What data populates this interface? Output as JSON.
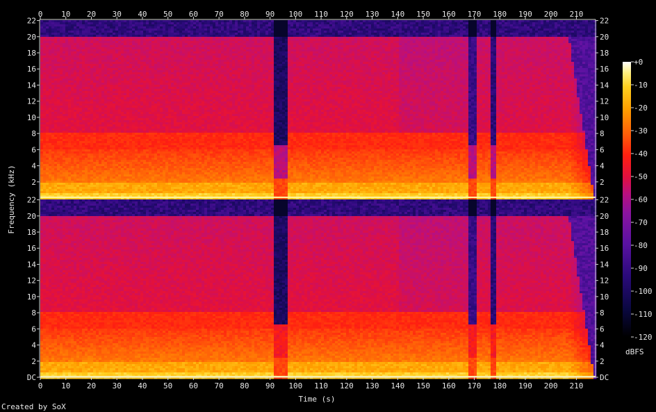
{
  "chart_data": {
    "type": "heatmap",
    "title": "",
    "xlabel": "Time (s)",
    "ylabel": "Frequency (kHz)",
    "xlim": [
      0,
      217.5
    ],
    "x_ticks": [
      0,
      10,
      20,
      30,
      40,
      50,
      60,
      70,
      80,
      90,
      100,
      110,
      120,
      130,
      140,
      150,
      160,
      170,
      180,
      190,
      200,
      210
    ],
    "x_tick_labels": [
      "0",
      "10",
      "20",
      "30",
      "40",
      "50",
      "60",
      "70",
      "80",
      "90",
      "100",
      "110",
      "120",
      "130",
      "140",
      "150",
      "160",
      "170",
      "180",
      "190",
      "200",
      "210"
    ],
    "channels": [
      {
        "ylim": [
          0,
          22.05
        ],
        "y_ticks": [
          2,
          4,
          6,
          8,
          10,
          12,
          14,
          16,
          18,
          20,
          22
        ],
        "y_tick_labels": [
          "2",
          "4",
          "6",
          "8",
          "10",
          "12",
          "14",
          "16",
          "18",
          "20",
          "22"
        ]
      },
      {
        "ylim": [
          0,
          22.05
        ],
        "y_ticks": [
          0,
          2,
          4,
          6,
          8,
          10,
          12,
          14,
          16,
          18,
          20,
          22
        ],
        "y_tick_labels": [
          "DC",
          "2",
          "4",
          "6",
          "8",
          "10",
          "12",
          "14",
          "16",
          "18",
          "20",
          "22"
        ]
      }
    ],
    "colorbar": {
      "label": "dBFS",
      "range": [
        -120,
        0
      ],
      "ticks": [
        0,
        -10,
        -20,
        -30,
        -40,
        -50,
        -60,
        -70,
        -80,
        -90,
        -100,
        -110,
        -120
      ],
      "tick_labels": [
        "+0",
        "-10",
        "-20",
        "-30",
        "-40",
        "-50",
        "-60",
        "-70",
        "-80",
        "-90",
        "-100",
        "-110",
        "-120"
      ]
    },
    "features": {
      "lowpass_cutoff_khz": 20,
      "gaps": [
        {
          "start_s": 91,
          "end_s": 96.5,
          "level_dbfs": -105
        },
        {
          "start_s": 168,
          "end_s": 171,
          "level_dbfs": -95
        },
        {
          "start_s": 176,
          "end_s": 178.5,
          "level_dbfs": -100
        }
      ],
      "fade_out": {
        "start_s": 207,
        "end_s": 217.5
      },
      "sections": [
        {
          "start_s": 0,
          "end_s": 91,
          "level_dbfs": -52
        },
        {
          "start_s": 96.5,
          "end_s": 140,
          "level_dbfs": -52
        },
        {
          "start_s": 140,
          "end_s": 168,
          "level_dbfs": -55
        },
        {
          "start_s": 171,
          "end_s": 207,
          "level_dbfs": -53
        }
      ]
    }
  },
  "credit": "Created by SoX"
}
